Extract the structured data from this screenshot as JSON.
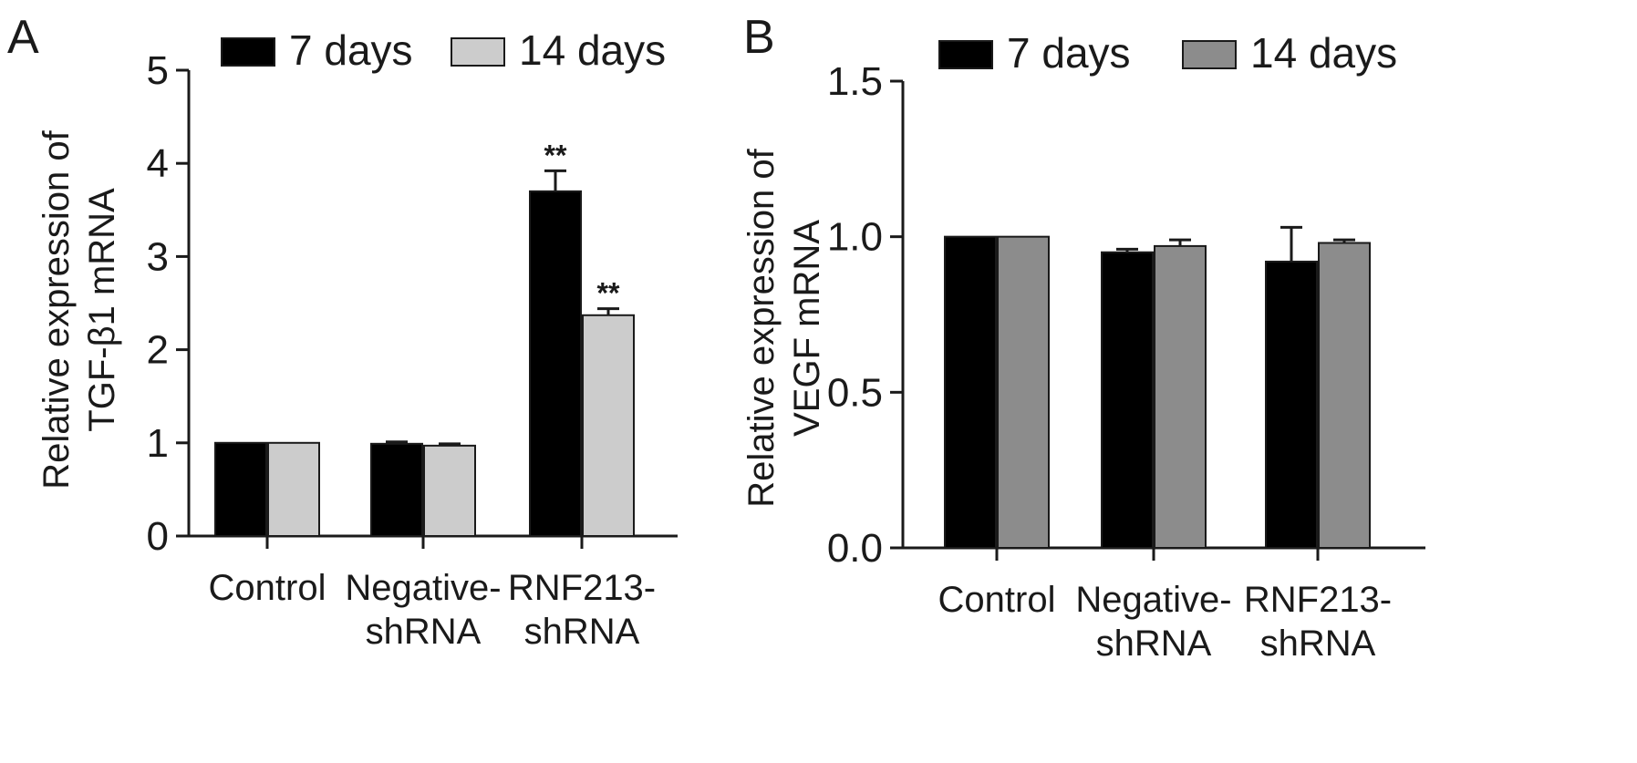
{
  "chart_data": [
    {
      "panel": "A",
      "type": "bar",
      "categories": [
        [
          "Control"
        ],
        [
          "Negative-",
          "shRNA"
        ],
        [
          "RNF213-",
          "shRNA"
        ]
      ],
      "series": [
        {
          "name": "7 days",
          "values": [
            1.0,
            0.99,
            3.7
          ],
          "errors": [
            0.0,
            0.02,
            0.22
          ],
          "color": "#000000"
        },
        {
          "name": "14 days",
          "values": [
            1.0,
            0.97,
            2.37
          ],
          "errors": [
            0.0,
            0.02,
            0.07
          ],
          "color": "#cccccc"
        }
      ],
      "annotations": [
        {
          "category": 2,
          "series": 0,
          "text": "**"
        },
        {
          "category": 2,
          "series": 1,
          "text": "**"
        }
      ],
      "ylabel": [
        "Relative expression of",
        "TGF-β1 mRNA"
      ],
      "ylim": [
        0,
        5
      ],
      "yticks": [
        "0",
        "1",
        "2",
        "3",
        "4",
        "5"
      ],
      "grid": false,
      "legend": "top"
    },
    {
      "panel": "B",
      "type": "bar",
      "categories": [
        [
          "Control"
        ],
        [
          "Negative-",
          "shRNA"
        ],
        [
          "RNF213-",
          "shRNA"
        ]
      ],
      "series": [
        {
          "name": "7 days",
          "values": [
            1.0,
            0.95,
            0.92
          ],
          "errors": [
            0.0,
            0.01,
            0.11
          ],
          "color": "#000000"
        },
        {
          "name": "14 days",
          "values": [
            1.0,
            0.97,
            0.98
          ],
          "errors": [
            0.0,
            0.02,
            0.01
          ],
          "color": "#8c8c8c"
        }
      ],
      "annotations": [],
      "ylabel": [
        "Relative expression of",
        "VEGF mRNA"
      ],
      "ylim": [
        0,
        1.5
      ],
      "yticks": [
        "0.0",
        "0.5",
        "1.0",
        "1.5"
      ],
      "grid": false,
      "legend": "top"
    }
  ]
}
